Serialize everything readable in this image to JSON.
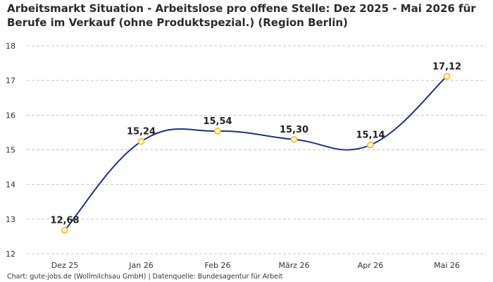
{
  "chart_data": {
    "type": "line",
    "title": "Arbeitsmarkt Situation - Arbeitslose pro offene Stelle: Dez 2025 - Mai 2026 für Berufe im Verkauf (ohne Produktspezial.) (Region Berlin)",
    "xlabel": "",
    "ylabel": "",
    "categories": [
      "Dez 25",
      "Jan 26",
      "Feb 26",
      "März 26",
      "Apr 26",
      "Mai 26"
    ],
    "series": [
      {
        "values": [
          12.68,
          15.24,
          15.54,
          15.3,
          15.14,
          17.12
        ],
        "labels": [
          "12,68",
          "15,24",
          "15,54",
          "15,30",
          "15,14",
          "17,12"
        ]
      }
    ],
    "ylim": [
      12,
      18
    ],
    "yticks": [
      "12",
      "13",
      "14",
      "15",
      "16",
      "17",
      "18"
    ],
    "grid": true,
    "line_color": "#1f2f8a",
    "marker_color": "#f2c530"
  },
  "footer": {
    "source": "Chart: gute-jobs.de (Wollmilchsau GmbH) | Datenquelle: Bundesagentur für Arbeit"
  }
}
